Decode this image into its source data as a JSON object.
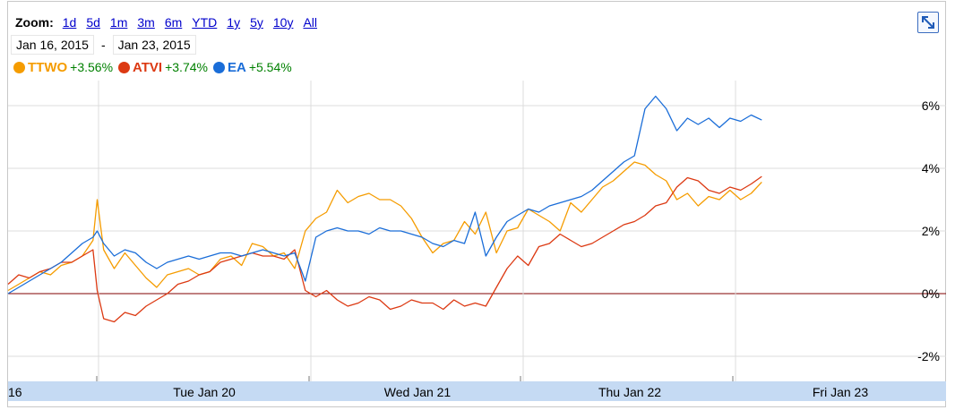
{
  "toolbar": {
    "zoom_label": "Zoom:",
    "zoom_options": [
      "1d",
      "5d",
      "1m",
      "3m",
      "6m",
      "YTD",
      "1y",
      "5y",
      "10y",
      "All"
    ],
    "date_start": "Jan 16, 2015",
    "date_separator": "-",
    "date_end": "Jan 23, 2015"
  },
  "legend": [
    {
      "name": "TTWO",
      "change": "+3.56%",
      "color": "#f59c00"
    },
    {
      "name": "ATVI",
      "change": "+3.74%",
      "color": "#dc3912"
    },
    {
      "name": "EA",
      "change": "+5.54%",
      "color": "#1a6dd8"
    }
  ],
  "expand_icon": "expand-arrows-icon",
  "chart_data": {
    "type": "line",
    "ylim": [
      -2.4,
      6.4
    ],
    "y_ticks": [
      "6%",
      "4%",
      "2%",
      "0%",
      "-2%"
    ],
    "y_tick_values": [
      6,
      4,
      2,
      0,
      -2
    ],
    "x_ticks": [
      "16",
      "Tue Jan 20",
      "Wed Jan 21",
      "Thu Jan 22",
      "Fri Jan 23"
    ],
    "grid": true,
    "legend_position": "top-left",
    "zero_line_color": "#800000",
    "series": [
      {
        "name": "TTWO",
        "color": "#f59c00",
        "x": [
          0,
          0.05,
          0.1,
          0.15,
          0.2,
          0.25,
          0.3,
          0.35,
          0.4,
          0.42,
          0.45,
          0.5,
          0.55,
          0.6,
          0.65,
          0.7,
          0.75,
          0.8,
          0.85,
          0.9,
          0.95,
          1.0,
          1.05,
          1.1,
          1.15,
          1.2,
          1.25,
          1.3,
          1.35,
          1.4,
          1.45,
          1.5,
          1.55,
          1.6,
          1.65,
          1.7,
          1.75,
          1.8,
          1.85,
          1.9,
          1.95,
          2.0,
          2.05,
          2.1,
          2.15,
          2.2,
          2.25,
          2.3,
          2.35,
          2.4,
          2.45,
          2.5,
          2.55,
          2.6,
          2.65,
          2.7,
          2.75,
          2.8,
          2.85,
          2.9,
          2.95,
          3.0,
          3.05,
          3.1,
          3.15,
          3.2,
          3.25,
          3.3,
          3.35,
          3.4,
          3.45,
          3.5,
          3.55
        ],
        "y": [
          0.1,
          0.3,
          0.5,
          0.7,
          0.6,
          0.9,
          1.0,
          1.2,
          1.7,
          3.0,
          1.4,
          0.8,
          1.3,
          0.9,
          0.5,
          0.2,
          0.6,
          0.7,
          0.8,
          0.6,
          0.7,
          1.1,
          1.2,
          0.9,
          1.6,
          1.5,
          1.2,
          1.3,
          0.8,
          2.0,
          2.4,
          2.6,
          3.3,
          2.9,
          3.1,
          3.2,
          3.0,
          3.0,
          2.8,
          2.4,
          1.8,
          1.3,
          1.6,
          1.7,
          2.3,
          1.9,
          2.6,
          1.3,
          2.0,
          2.1,
          2.7,
          2.5,
          2.3,
          2.0,
          2.9,
          2.6,
          3.0,
          3.4,
          3.6,
          3.9,
          4.2,
          4.1,
          3.8,
          3.6,
          3.0,
          3.2,
          2.8,
          3.1,
          3.0,
          3.3,
          3.0,
          3.2,
          3.56
        ]
      },
      {
        "name": "ATVI",
        "color": "#dc3912",
        "x": [
          0,
          0.05,
          0.1,
          0.15,
          0.2,
          0.25,
          0.3,
          0.35,
          0.4,
          0.42,
          0.45,
          0.5,
          0.55,
          0.6,
          0.65,
          0.7,
          0.75,
          0.8,
          0.85,
          0.9,
          0.95,
          1.0,
          1.05,
          1.1,
          1.15,
          1.2,
          1.25,
          1.3,
          1.35,
          1.4,
          1.45,
          1.5,
          1.55,
          1.6,
          1.65,
          1.7,
          1.75,
          1.8,
          1.85,
          1.9,
          1.95,
          2.0,
          2.05,
          2.1,
          2.15,
          2.2,
          2.25,
          2.3,
          2.35,
          2.4,
          2.45,
          2.5,
          2.55,
          2.6,
          2.65,
          2.7,
          2.75,
          2.8,
          2.85,
          2.9,
          2.95,
          3.0,
          3.05,
          3.1,
          3.15,
          3.2,
          3.25,
          3.3,
          3.35,
          3.4,
          3.45,
          3.5,
          3.55
        ],
        "y": [
          0.3,
          0.6,
          0.5,
          0.7,
          0.8,
          1.0,
          1.0,
          1.2,
          1.4,
          0.1,
          -0.8,
          -0.9,
          -0.6,
          -0.7,
          -0.4,
          -0.2,
          0.0,
          0.3,
          0.4,
          0.6,
          0.7,
          1.0,
          1.1,
          1.2,
          1.3,
          1.2,
          1.2,
          1.1,
          1.4,
          0.1,
          -0.1,
          0.1,
          -0.2,
          -0.4,
          -0.3,
          -0.1,
          -0.2,
          -0.5,
          -0.4,
          -0.2,
          -0.3,
          -0.3,
          -0.5,
          -0.2,
          -0.4,
          -0.3,
          -0.4,
          0.2,
          0.8,
          1.2,
          0.9,
          1.5,
          1.6,
          1.9,
          1.7,
          1.5,
          1.6,
          1.8,
          2.0,
          2.2,
          2.3,
          2.5,
          2.8,
          2.9,
          3.4,
          3.7,
          3.6,
          3.3,
          3.2,
          3.4,
          3.3,
          3.5,
          3.74
        ]
      },
      {
        "name": "EA",
        "color": "#1a6dd8",
        "x": [
          0,
          0.05,
          0.1,
          0.15,
          0.2,
          0.25,
          0.3,
          0.35,
          0.4,
          0.42,
          0.45,
          0.5,
          0.55,
          0.6,
          0.65,
          0.7,
          0.75,
          0.8,
          0.85,
          0.9,
          0.95,
          1.0,
          1.05,
          1.1,
          1.15,
          1.2,
          1.25,
          1.3,
          1.35,
          1.4,
          1.45,
          1.5,
          1.55,
          1.6,
          1.65,
          1.7,
          1.75,
          1.8,
          1.85,
          1.9,
          1.95,
          2.0,
          2.05,
          2.1,
          2.15,
          2.2,
          2.25,
          2.3,
          2.35,
          2.4,
          2.45,
          2.5,
          2.55,
          2.6,
          2.65,
          2.7,
          2.75,
          2.8,
          2.85,
          2.9,
          2.95,
          3.0,
          3.05,
          3.1,
          3.15,
          3.2,
          3.25,
          3.3,
          3.35,
          3.4,
          3.45,
          3.5,
          3.55
        ],
        "y": [
          0.0,
          0.2,
          0.4,
          0.6,
          0.8,
          1.0,
          1.3,
          1.6,
          1.8,
          2.0,
          1.6,
          1.2,
          1.4,
          1.3,
          1.0,
          0.8,
          1.0,
          1.1,
          1.2,
          1.1,
          1.2,
          1.3,
          1.3,
          1.2,
          1.3,
          1.4,
          1.3,
          1.2,
          1.3,
          0.4,
          1.8,
          2.0,
          2.1,
          2.0,
          2.0,
          1.9,
          2.1,
          2.0,
          2.0,
          1.9,
          1.8,
          1.6,
          1.5,
          1.7,
          1.6,
          2.6,
          1.2,
          1.8,
          2.3,
          2.5,
          2.7,
          2.6,
          2.8,
          2.9,
          3.0,
          3.1,
          3.3,
          3.6,
          3.9,
          4.2,
          4.4,
          5.9,
          6.3,
          5.9,
          5.2,
          5.6,
          5.4,
          5.6,
          5.3,
          5.6,
          5.5,
          5.7,
          5.54
        ]
      }
    ]
  }
}
